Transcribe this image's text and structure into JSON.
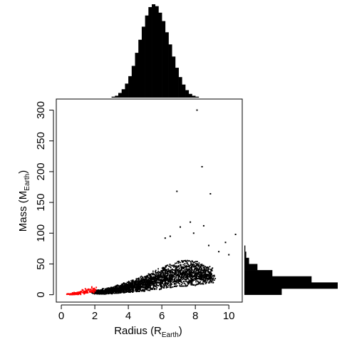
{
  "chart_data": [
    {
      "type": "scatter",
      "xlabel_main": "Radius (R",
      "xlabel_sub": "Earth",
      "xlabel_end": ")",
      "ylabel_main": "Mass (M",
      "ylabel_sub": "Earth",
      "ylabel_end": ")",
      "xlim": [
        -0.3,
        10.8
      ],
      "ylim": [
        -12,
        318
      ],
      "xticks": [
        0,
        2,
        4,
        6,
        8,
        10
      ],
      "yticks": [
        0,
        50,
        100,
        150,
        200,
        250,
        300
      ],
      "series": [
        {
          "color": "#000000",
          "description_ref": "bulk",
          "cloud": [
            [
              2.0,
              1,
              6
            ],
            [
              2.5,
              1,
              9
            ],
            [
              3.0,
              2,
              12
            ],
            [
              3.5,
              3,
              16
            ],
            [
              4.0,
              4,
              20
            ],
            [
              4.5,
              5,
              25
            ],
            [
              5.0,
              6,
              30
            ],
            [
              5.5,
              8,
              36
            ],
            [
              6.0,
              10,
              42
            ],
            [
              6.5,
              12,
              48
            ],
            [
              7.0,
              14,
              54
            ],
            [
              7.5,
              14,
              56
            ],
            [
              8.0,
              16,
              54
            ],
            [
              8.5,
              18,
              48
            ],
            [
              9.0,
              20,
              40
            ]
          ],
          "outliers": [
            [
              8.1,
              300
            ],
            [
              8.4,
              208
            ],
            [
              6.9,
              168
            ],
            [
              8.9,
              164
            ],
            [
              7.7,
              118
            ],
            [
              10.4,
              98
            ],
            [
              8.5,
              112
            ],
            [
              7.1,
              110
            ],
            [
              9.8,
              85
            ],
            [
              6.5,
              95
            ],
            [
              9.4,
              70
            ],
            [
              8.8,
              80
            ],
            [
              7.9,
              100
            ],
            [
              10.0,
              65
            ],
            [
              6.2,
              92
            ]
          ]
        },
        {
          "color": "#ff0000",
          "cloud": [
            [
              0.5,
              0,
              2
            ],
            [
              0.8,
              0,
              3
            ],
            [
              1.1,
              1,
              5
            ],
            [
              1.4,
              2,
              8
            ],
            [
              1.7,
              3,
              11
            ],
            [
              2.0,
              4,
              13
            ]
          ],
          "outliers": []
        }
      ]
    },
    {
      "type": "histogram",
      "orientation": "vertical",
      "variable": "radius",
      "bins_x": [
        3.0,
        3.2,
        3.4,
        3.6,
        3.8,
        4.0,
        4.2,
        4.4,
        4.6,
        4.8,
        5.0,
        5.2,
        5.4,
        5.6,
        5.8,
        6.0,
        6.2,
        6.4,
        6.6,
        6.8,
        7.0,
        7.2,
        7.4,
        7.6,
        7.8,
        8.0,
        8.2
      ],
      "counts": [
        1,
        2,
        5,
        9,
        15,
        23,
        34,
        48,
        62,
        76,
        88,
        97,
        100,
        98,
        91,
        82,
        70,
        57,
        44,
        32,
        22,
        14,
        8,
        4,
        2,
        1
      ]
    },
    {
      "type": "histogram",
      "orientation": "horizontal",
      "variable": "mass",
      "bins_y": [
        0,
        10,
        20,
        30,
        40,
        50,
        60,
        70,
        80
      ],
      "counts": [
        40,
        100,
        72,
        30,
        14,
        5,
        2,
        1
      ]
    }
  ]
}
